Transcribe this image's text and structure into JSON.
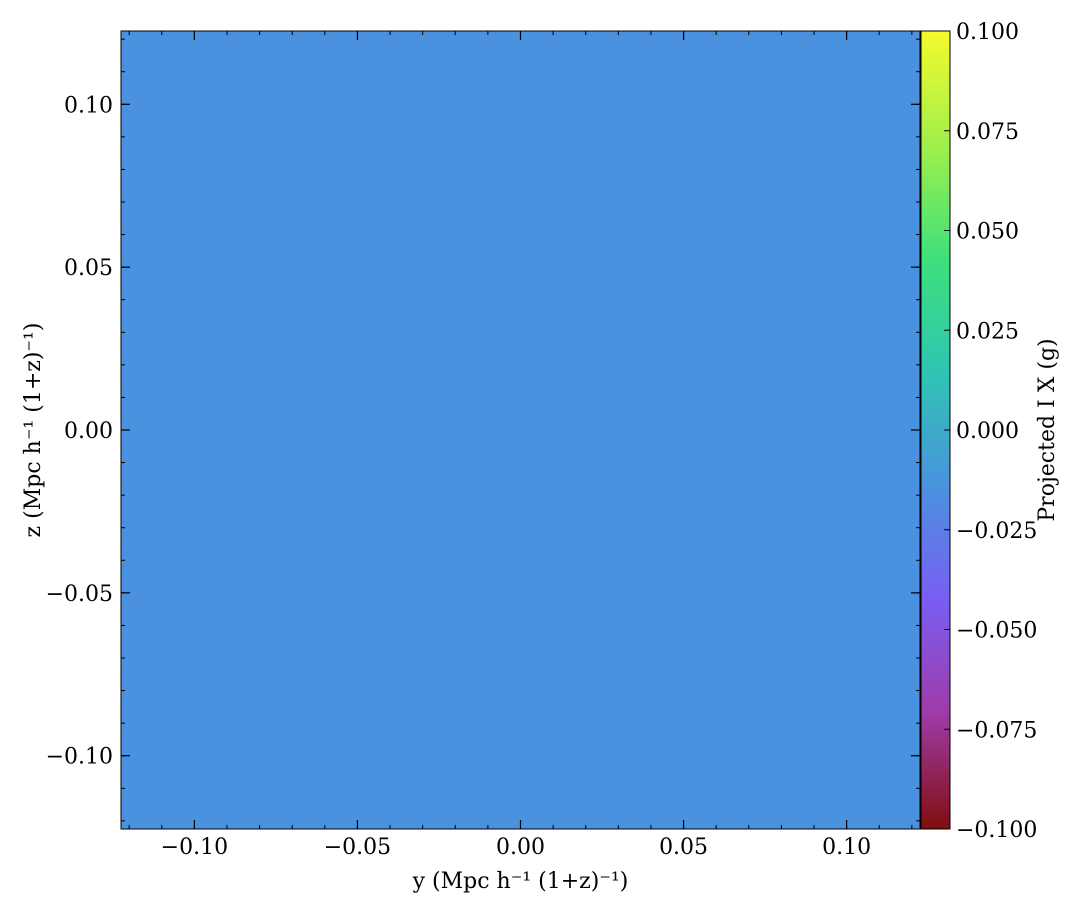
{
  "chart_data": {
    "type": "heatmap",
    "title": "",
    "xlabel": "y  (Mpc h⁻¹ (1+z)⁻¹)",
    "ylabel": "z  (Mpc h⁻¹ (1+z)⁻¹)",
    "xlim": [
      -0.1225,
      0.1225
    ],
    "ylim": [
      -0.1225,
      0.1225
    ],
    "xticks": [
      -0.1,
      -0.05,
      0.0,
      0.05,
      0.1
    ],
    "xtick_labels": [
      "−0.10",
      "−0.05",
      "0.00",
      "0.05",
      "0.10"
    ],
    "yticks": [
      -0.1,
      -0.05,
      0.0,
      0.05,
      0.1
    ],
    "ytick_labels": [
      "−0.10",
      "−0.05",
      "0.00",
      "0.05",
      "0.10"
    ],
    "field_value": 0.0,
    "field_color": "#4a92df",
    "grid": false,
    "colorbar": {
      "label": "Projected I X  (g)",
      "lim": [
        -0.1,
        0.1
      ],
      "ticks": [
        0.1,
        0.075,
        0.05,
        0.025,
        0.0,
        -0.025,
        -0.05,
        -0.075,
        -0.1
      ],
      "tick_labels": [
        "0.100",
        "0.075",
        "0.050",
        "0.025",
        "0.000",
        "−0.025",
        "−0.050",
        "−0.075",
        "−0.100"
      ],
      "colors": [
        "#800e0f",
        "#9f3aa6",
        "#7a5df2",
        "#4a92df",
        "#2fc4b2",
        "#3ee07c",
        "#a0ef4a",
        "#f4fb2c"
      ]
    }
  }
}
